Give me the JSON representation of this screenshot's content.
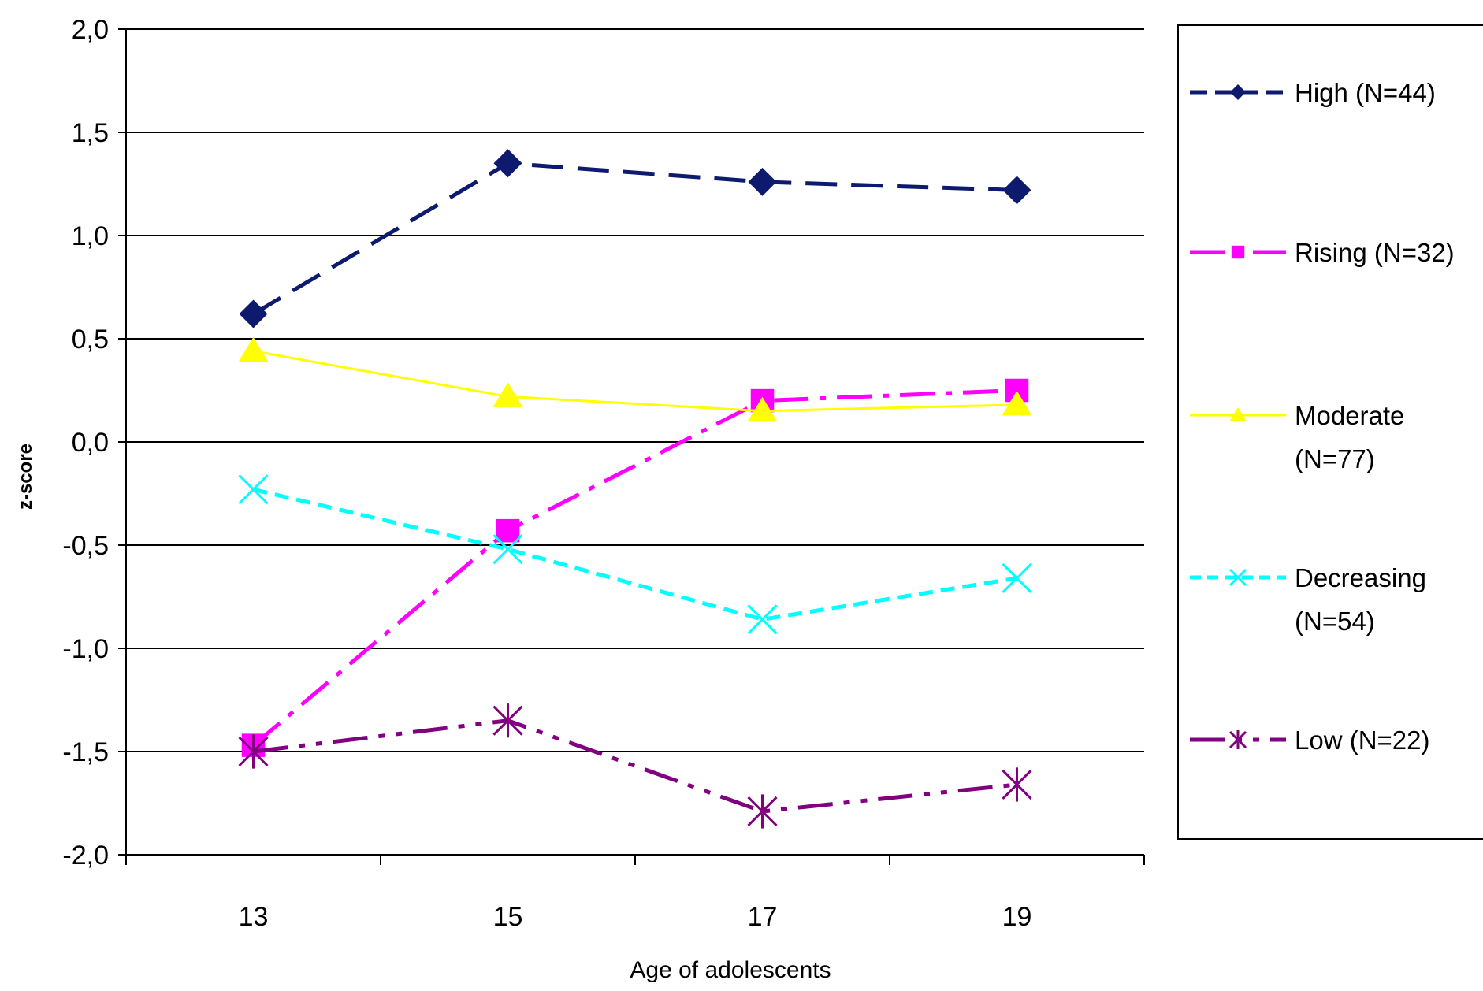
{
  "chart_data": {
    "type": "line",
    "title": "",
    "xlabel": "Age of adolescents",
    "ylabel": "z-score",
    "x": [
      13,
      15,
      17,
      19
    ],
    "x_tick_labels": [
      "13",
      "15",
      "17",
      "19"
    ],
    "xlim": [
      12,
      20
    ],
    "ylim": [
      -2.0,
      2.0
    ],
    "y_ticks": [
      2.0,
      1.5,
      1.0,
      0.5,
      0.0,
      -0.5,
      -1.0,
      -1.5,
      -2.0
    ],
    "y_tick_labels": [
      "2,0",
      "1,5",
      "1,0",
      "0,5",
      "0,0",
      "-0,5",
      "-1,0",
      "-1,5",
      "-2,0"
    ],
    "grid": "horizontal",
    "legend_position": "right",
    "series": [
      {
        "name": "High (N=44)",
        "legend_lines": [
          "High (N=44)"
        ],
        "values": [
          0.62,
          1.35,
          1.26,
          1.22
        ],
        "color": "#0d1a6e",
        "dash": "long-dash",
        "marker": "diamond"
      },
      {
        "name": "Rising (N=32)",
        "legend_lines": [
          "Rising (N=32)"
        ],
        "values": [
          -1.47,
          -0.43,
          0.2,
          0.25
        ],
        "color": "#ff00ff",
        "dash": "dash-dot",
        "marker": "square"
      },
      {
        "name": "Moderate (N=77)",
        "legend_lines": [
          "Moderate",
          "(N=77)"
        ],
        "values": [
          0.44,
          0.22,
          0.15,
          0.18
        ],
        "color": "#ffff00",
        "dash": "solid",
        "marker": "triangle"
      },
      {
        "name": "Decreasing (N=54)",
        "legend_lines": [
          "Decreasing",
          "(N=54)"
        ],
        "values": [
          -0.23,
          -0.52,
          -0.86,
          -0.66
        ],
        "color": "#00ffff",
        "dash": "short-dash",
        "marker": "x"
      },
      {
        "name": "Low (N=22)",
        "legend_lines": [
          "Low (N=22)"
        ],
        "values": [
          -1.5,
          -1.35,
          -1.79,
          -1.66
        ],
        "color": "#800080",
        "dash": "dash-dot-dot",
        "marker": "asterisk"
      }
    ]
  }
}
